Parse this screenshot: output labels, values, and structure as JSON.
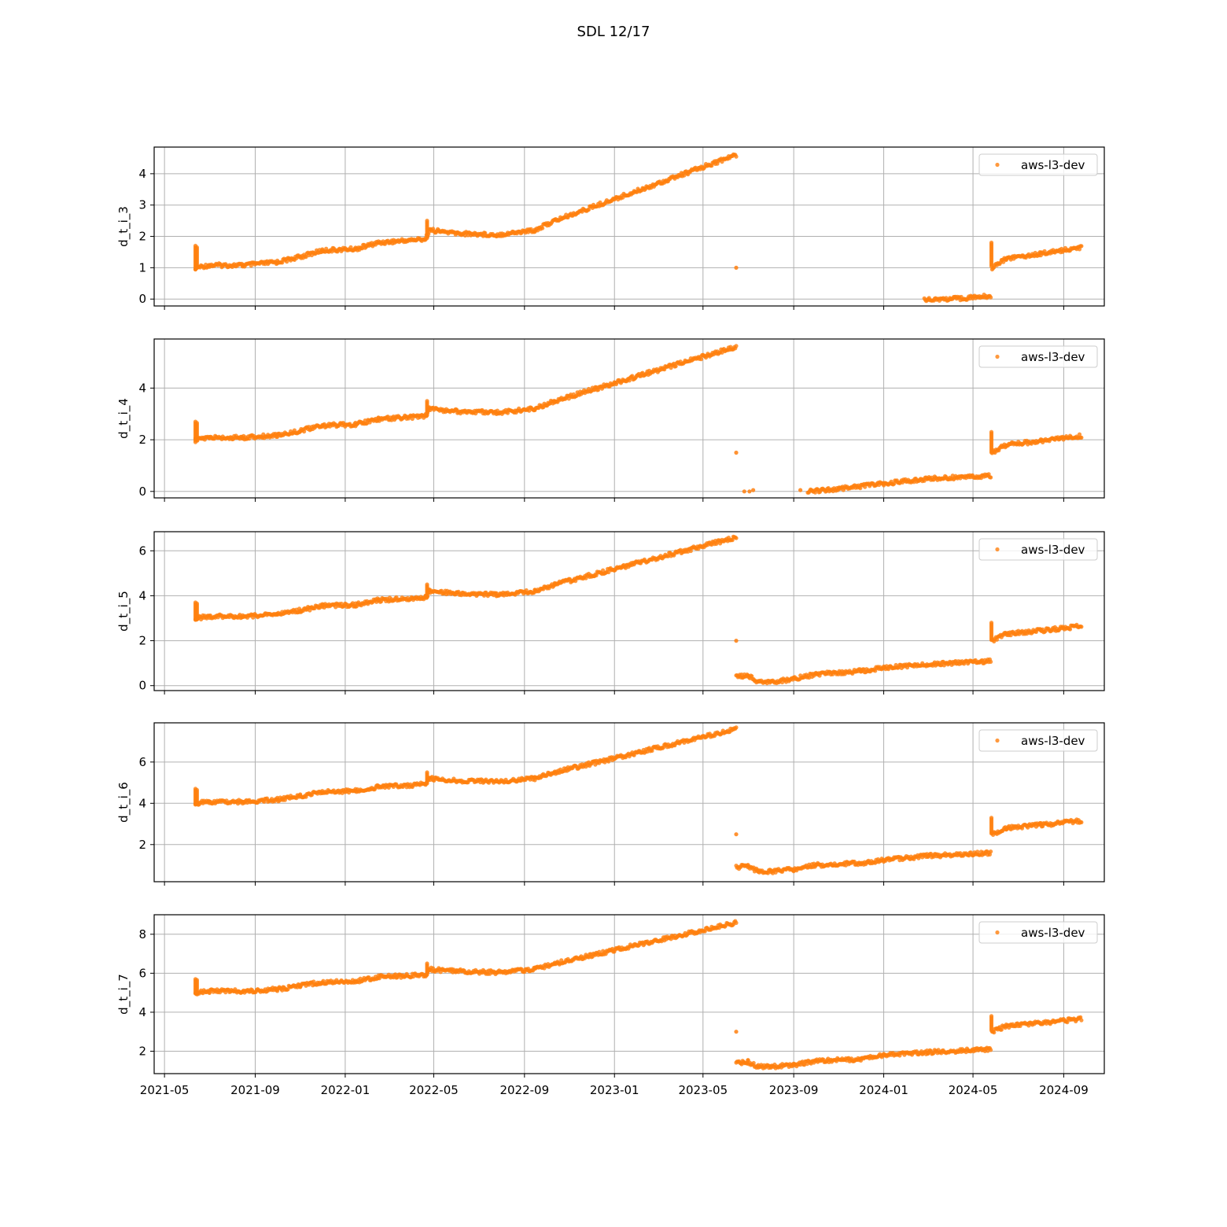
{
  "figure": {
    "title": "SDL 12/17"
  },
  "chart_data": {
    "type": "scatter",
    "x_ticks": [
      "2021-05",
      "2021-09",
      "2022-01",
      "2022-05",
      "2022-09",
      "2023-01",
      "2023-05",
      "2023-09",
      "2024-01",
      "2024-05",
      "2024-09"
    ],
    "x_range": [
      "2021-04-17",
      "2024-10-26"
    ],
    "marker_color": "#ff7f0e",
    "grid": true,
    "legend_position": "top-right",
    "panels": [
      {
        "ylabel": "d_t_i_3",
        "ylim": [
          -0.22,
          4.85
        ],
        "yticks": [
          0,
          1,
          2,
          3,
          4
        ],
        "series": [
          {
            "name": "aws-l3-dev",
            "segments": [
              [
                [
                  "2021-06-12",
                  1.0
                ],
                [
                  "2021-07-01",
                  1.08
                ],
                [
                  "2021-08-15",
                  1.08
                ],
                [
                  "2021-10-01",
                  1.18
                ],
                [
                  "2021-11-01",
                  1.35
                ],
                [
                  "2021-12-01",
                  1.55
                ],
                [
                  "2022-01-15",
                  1.6
                ],
                [
                  "2022-02-15",
                  1.8
                ],
                [
                  "2022-04-20",
                  1.92
                ],
                [
                  "2022-04-25",
                  2.2
                ],
                [
                  "2022-06-01",
                  2.1
                ],
                [
                  "2022-07-25",
                  2.05
                ],
                [
                  "2022-09-15",
                  2.2
                ],
                [
                  "2022-10-12",
                  2.5
                ],
                [
                  "2023-06-15",
                  4.6
                ]
              ],
              [
                [
                  "2024-02-25",
                  0.0
                ],
                [
                  "2024-04-01",
                  0.0
                ],
                [
                  "2024-05-25",
                  0.1
                ]
              ],
              [
                [
                  "2024-05-27",
                  1.0
                ],
                [
                  "2024-06-15",
                  1.3
                ],
                [
                  "2024-08-01",
                  1.45
                ],
                [
                  "2024-09-25",
                  1.65
                ]
              ]
            ],
            "spikes": [
              [
                "2021-06-12",
                0.9,
                1.7
              ],
              [
                "2021-06-14",
                0.95,
                1.65
              ],
              [
                "2022-04-22",
                1.9,
                2.5
              ],
              [
                "2024-05-26",
                1.0,
                1.8
              ]
            ],
            "points": [
              [
                "2023-06-15",
                1.0
              ]
            ]
          }
        ]
      },
      {
        "ylabel": "d_t_i_4",
        "ylim": [
          -0.25,
          5.9
        ],
        "yticks": [
          0,
          2,
          4
        ],
        "series": [
          {
            "name": "aws-l3-dev",
            "segments": [
              [
                [
                  "2021-06-12",
                  2.0
                ],
                [
                  "2021-07-01",
                  2.08
                ],
                [
                  "2021-08-15",
                  2.08
                ],
                [
                  "2021-10-01",
                  2.18
                ],
                [
                  "2021-11-01",
                  2.35
                ],
                [
                  "2021-12-01",
                  2.55
                ],
                [
                  "2022-01-15",
                  2.6
                ],
                [
                  "2022-02-15",
                  2.8
                ],
                [
                  "2022-04-20",
                  2.92
                ],
                [
                  "2022-04-25",
                  3.2
                ],
                [
                  "2022-06-01",
                  3.1
                ],
                [
                  "2022-07-25",
                  3.05
                ],
                [
                  "2022-09-15",
                  3.2
                ],
                [
                  "2022-10-12",
                  3.5
                ],
                [
                  "2023-06-15",
                  5.6
                ]
              ],
              [
                [
                  "2023-09-20",
                  0.0
                ],
                [
                  "2023-11-01",
                  0.1
                ],
                [
                  "2024-01-01",
                  0.3
                ],
                [
                  "2024-03-01",
                  0.5
                ],
                [
                  "2024-05-25",
                  0.6
                ]
              ],
              [
                [
                  "2024-05-27",
                  1.5
                ],
                [
                  "2024-06-15",
                  1.8
                ],
                [
                  "2024-08-01",
                  1.95
                ],
                [
                  "2024-09-25",
                  2.15
                ]
              ]
            ],
            "spikes": [
              [
                "2021-06-12",
                1.9,
                2.7
              ],
              [
                "2021-06-14",
                1.95,
                2.65
              ],
              [
                "2022-04-22",
                2.9,
                3.5
              ],
              [
                "2024-05-26",
                1.5,
                2.3
              ]
            ],
            "points": [
              [
                "2023-06-15",
                1.5
              ],
              [
                "2023-06-26",
                0.0
              ],
              [
                "2023-07-03",
                0.0
              ],
              [
                "2023-07-08",
                0.05
              ],
              [
                "2023-09-10",
                0.05
              ]
            ]
          }
        ]
      },
      {
        "ylabel": "d_t_i_5",
        "ylim": [
          -0.22,
          6.85
        ],
        "yticks": [
          0,
          2,
          4,
          6
        ],
        "series": [
          {
            "name": "aws-l3-dev",
            "segments": [
              [
                [
                  "2021-06-12",
                  3.0
                ],
                [
                  "2021-07-01",
                  3.08
                ],
                [
                  "2021-08-15",
                  3.08
                ],
                [
                  "2021-10-01",
                  3.18
                ],
                [
                  "2021-11-01",
                  3.35
                ],
                [
                  "2021-12-01",
                  3.55
                ],
                [
                  "2022-01-15",
                  3.6
                ],
                [
                  "2022-02-15",
                  3.8
                ],
                [
                  "2022-04-20",
                  3.92
                ],
                [
                  "2022-04-25",
                  4.2
                ],
                [
                  "2022-06-01",
                  4.1
                ],
                [
                  "2022-07-25",
                  4.05
                ],
                [
                  "2022-09-15",
                  4.2
                ],
                [
                  "2022-10-12",
                  4.5
                ],
                [
                  "2023-06-15",
                  6.6
                ]
              ],
              [
                [
                  "2023-06-15",
                  0.4
                ],
                [
                  "2023-07-01",
                  0.45
                ],
                [
                  "2023-07-15",
                  0.15
                ],
                [
                  "2023-08-01",
                  0.15
                ],
                [
                  "2023-09-01",
                  0.3
                ],
                [
                  "2023-10-01",
                  0.5
                ],
                [
                  "2023-12-01",
                  0.65
                ],
                [
                  "2024-01-01",
                  0.8
                ],
                [
                  "2024-03-01",
                  0.95
                ],
                [
                  "2024-05-25",
                  1.1
                ]
              ],
              [
                [
                  "2024-05-27",
                  2.0
                ],
                [
                  "2024-06-15",
                  2.3
                ],
                [
                  "2024-08-01",
                  2.45
                ],
                [
                  "2024-09-25",
                  2.65
                ]
              ]
            ],
            "spikes": [
              [
                "2021-06-12",
                2.9,
                3.7
              ],
              [
                "2021-06-14",
                2.95,
                3.65
              ],
              [
                "2022-04-22",
                3.9,
                4.5
              ],
              [
                "2024-05-26",
                2.0,
                2.8
              ]
            ],
            "points": [
              [
                "2023-06-15",
                2.0
              ]
            ]
          }
        ]
      },
      {
        "ylabel": "d_t_i_6",
        "ylim": [
          0.2,
          7.9
        ],
        "yticks": [
          2,
          4,
          6
        ],
        "series": [
          {
            "name": "aws-l3-dev",
            "segments": [
              [
                [
                  "2021-06-12",
                  4.0
                ],
                [
                  "2021-07-01",
                  4.08
                ],
                [
                  "2021-08-15",
                  4.08
                ],
                [
                  "2021-10-01",
                  4.18
                ],
                [
                  "2021-11-01",
                  4.35
                ],
                [
                  "2021-12-01",
                  4.55
                ],
                [
                  "2022-01-15",
                  4.6
                ],
                [
                  "2022-02-15",
                  4.8
                ],
                [
                  "2022-04-20",
                  4.92
                ],
                [
                  "2022-04-25",
                  5.2
                ],
                [
                  "2022-06-01",
                  5.1
                ],
                [
                  "2022-07-25",
                  5.05
                ],
                [
                  "2022-09-15",
                  5.2
                ],
                [
                  "2022-10-12",
                  5.5
                ],
                [
                  "2023-06-15",
                  7.6
                ]
              ],
              [
                [
                  "2023-06-15",
                  0.9
                ],
                [
                  "2023-07-01",
                  0.95
                ],
                [
                  "2023-07-15",
                  0.7
                ],
                [
                  "2023-08-01",
                  0.7
                ],
                [
                  "2023-09-01",
                  0.8
                ],
                [
                  "2023-10-01",
                  1.0
                ],
                [
                  "2023-12-01",
                  1.1
                ],
                [
                  "2024-01-01",
                  1.25
                ],
                [
                  "2024-03-01",
                  1.45
                ],
                [
                  "2024-05-25",
                  1.6
                ]
              ],
              [
                [
                  "2024-05-27",
                  2.5
                ],
                [
                  "2024-06-15",
                  2.8
                ],
                [
                  "2024-08-01",
                  2.95
                ],
                [
                  "2024-09-25",
                  3.15
                ]
              ]
            ],
            "spikes": [
              [
                "2021-06-12",
                3.9,
                4.7
              ],
              [
                "2021-06-14",
                3.95,
                4.65
              ],
              [
                "2022-04-22",
                4.9,
                5.5
              ],
              [
                "2024-05-26",
                2.5,
                3.3
              ]
            ],
            "points": [
              [
                "2023-06-15",
                2.5
              ]
            ]
          }
        ]
      },
      {
        "ylabel": "d_t_i_7",
        "ylim": [
          0.85,
          9.0
        ],
        "yticks": [
          2,
          4,
          6,
          8
        ],
        "series": [
          {
            "name": "aws-l3-dev",
            "segments": [
              [
                [
                  "2021-06-12",
                  5.0
                ],
                [
                  "2021-07-01",
                  5.08
                ],
                [
                  "2021-08-15",
                  5.08
                ],
                [
                  "2021-10-01",
                  5.18
                ],
                [
                  "2021-11-01",
                  5.35
                ],
                [
                  "2021-12-01",
                  5.55
                ],
                [
                  "2022-01-15",
                  5.6
                ],
                [
                  "2022-02-15",
                  5.8
                ],
                [
                  "2022-04-20",
                  5.92
                ],
                [
                  "2022-04-25",
                  6.2
                ],
                [
                  "2022-06-01",
                  6.1
                ],
                [
                  "2022-07-25",
                  6.05
                ],
                [
                  "2022-09-15",
                  6.2
                ],
                [
                  "2022-10-12",
                  6.5
                ],
                [
                  "2023-06-15",
                  8.6
                ]
              ],
              [
                [
                  "2023-06-15",
                  1.4
                ],
                [
                  "2023-07-01",
                  1.45
                ],
                [
                  "2023-07-15",
                  1.2
                ],
                [
                  "2023-08-01",
                  1.2
                ],
                [
                  "2023-09-01",
                  1.3
                ],
                [
                  "2023-10-01",
                  1.5
                ],
                [
                  "2023-12-01",
                  1.6
                ],
                [
                  "2024-01-01",
                  1.8
                ],
                [
                  "2024-03-01",
                  1.95
                ],
                [
                  "2024-05-25",
                  2.1
                ]
              ],
              [
                [
                  "2024-05-27",
                  3.0
                ],
                [
                  "2024-06-15",
                  3.3
                ],
                [
                  "2024-08-01",
                  3.45
                ],
                [
                  "2024-09-25",
                  3.65
                ]
              ]
            ],
            "spikes": [
              [
                "2021-06-12",
                4.9,
                5.7
              ],
              [
                "2021-06-14",
                4.95,
                5.65
              ],
              [
                "2022-04-22",
                5.9,
                6.5
              ],
              [
                "2024-05-26",
                3.0,
                3.8
              ]
            ],
            "points": [
              [
                "2023-06-15",
                3.0
              ]
            ]
          }
        ]
      }
    ]
  }
}
